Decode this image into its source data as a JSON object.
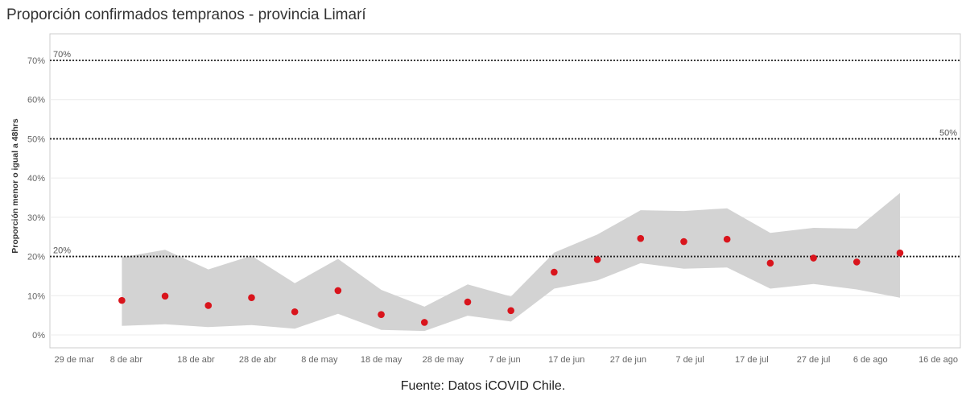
{
  "title": "Proporción confirmados tempranos - provincia Limarí",
  "source": "Fuente: Datos iCOVID Chile.",
  "colors": {
    "point": "#d9141c",
    "band": "#d3d3d3",
    "grid": "#ececec",
    "refline": "#222222",
    "axis": "#cccccc"
  },
  "chart_data": {
    "type": "scatter",
    "title": "Proporción confirmados tempranos - provincia Limarí",
    "ylabel": "Proporción menor o igual a 48hrs",
    "xlabel": "",
    "ylim": [
      0,
      70
    ],
    "y_ticks": [
      {
        "v": 0,
        "label": "0%"
      },
      {
        "v": 10,
        "label": "10%"
      },
      {
        "v": 20,
        "label": "20%"
      },
      {
        "v": 30,
        "label": "30%"
      },
      {
        "v": 40,
        "label": "40%"
      },
      {
        "v": 50,
        "label": "50%"
      },
      {
        "v": 60,
        "label": "60%"
      },
      {
        "v": 70,
        "label": "70%"
      }
    ],
    "x_ticks": [
      {
        "date": "2020-03-29",
        "label": "29 de mar"
      },
      {
        "date": "2020-04-08",
        "label": "8 de abr"
      },
      {
        "date": "2020-04-18",
        "label": "18 de abr"
      },
      {
        "date": "2020-04-28",
        "label": "28 de abr"
      },
      {
        "date": "2020-05-08",
        "label": "8 de may"
      },
      {
        "date": "2020-05-18",
        "label": "18 de may"
      },
      {
        "date": "2020-05-28",
        "label": "28 de may"
      },
      {
        "date": "2020-06-07",
        "label": "7 de jun"
      },
      {
        "date": "2020-06-17",
        "label": "17 de jun"
      },
      {
        "date": "2020-06-27",
        "label": "27 de jun"
      },
      {
        "date": "2020-07-07",
        "label": "7 de jul"
      },
      {
        "date": "2020-07-17",
        "label": "17 de jul"
      },
      {
        "date": "2020-07-27",
        "label": "27 de jul"
      },
      {
        "date": "2020-08-06",
        "label": "6 de ago"
      },
      {
        "date": "2020-08-16",
        "label": "16 de ago"
      }
    ],
    "x_range": [
      "2020-03-29",
      "2020-08-16"
    ],
    "reference_lines": [
      {
        "value": 70,
        "label": "70%",
        "label_pos": "left"
      },
      {
        "value": 50,
        "label": "50%",
        "label_pos": "right"
      },
      {
        "value": 20,
        "label": "20%",
        "label_pos": "left"
      }
    ],
    "grid": true,
    "series": [
      {
        "points": [
          {
            "date": "2020-04-06",
            "y": 8.8,
            "lower": 2.3,
            "upper": 19.8
          },
          {
            "date": "2020-04-13",
            "y": 9.9,
            "lower": 2.7,
            "upper": 21.7
          },
          {
            "date": "2020-04-20",
            "y": 7.5,
            "lower": 2.0,
            "upper": 16.7
          },
          {
            "date": "2020-04-27",
            "y": 9.5,
            "lower": 2.5,
            "upper": 20.2
          },
          {
            "date": "2020-05-04",
            "y": 5.9,
            "lower": 1.6,
            "upper": 13.2
          },
          {
            "date": "2020-05-11",
            "y": 11.3,
            "lower": 5.4,
            "upper": 19.4
          },
          {
            "date": "2020-05-18",
            "y": 5.2,
            "lower": 1.3,
            "upper": 11.5
          },
          {
            "date": "2020-05-25",
            "y": 3.2,
            "lower": 1.0,
            "upper": 7.2
          },
          {
            "date": "2020-06-01",
            "y": 8.4,
            "lower": 4.9,
            "upper": 12.9
          },
          {
            "date": "2020-06-08",
            "y": 6.2,
            "lower": 3.4,
            "upper": 9.8
          },
          {
            "date": "2020-06-15",
            "y": 16.0,
            "lower": 11.8,
            "upper": 21.0
          },
          {
            "date": "2020-06-22",
            "y": 19.2,
            "lower": 13.9,
            "upper": 25.6
          },
          {
            "date": "2020-06-29",
            "y": 24.6,
            "lower": 18.3,
            "upper": 31.8
          },
          {
            "date": "2020-07-06",
            "y": 23.8,
            "lower": 16.9,
            "upper": 31.6
          },
          {
            "date": "2020-07-13",
            "y": 24.4,
            "lower": 17.2,
            "upper": 32.3
          },
          {
            "date": "2020-07-20",
            "y": 18.3,
            "lower": 11.8,
            "upper": 26.0
          },
          {
            "date": "2020-07-27",
            "y": 19.6,
            "lower": 13.0,
            "upper": 27.3
          },
          {
            "date": "2020-08-03",
            "y": 18.6,
            "lower": 11.6,
            "upper": 27.1
          },
          {
            "date": "2020-08-10",
            "y": 20.9,
            "lower": 9.5,
            "upper": 36.2
          }
        ]
      }
    ]
  }
}
